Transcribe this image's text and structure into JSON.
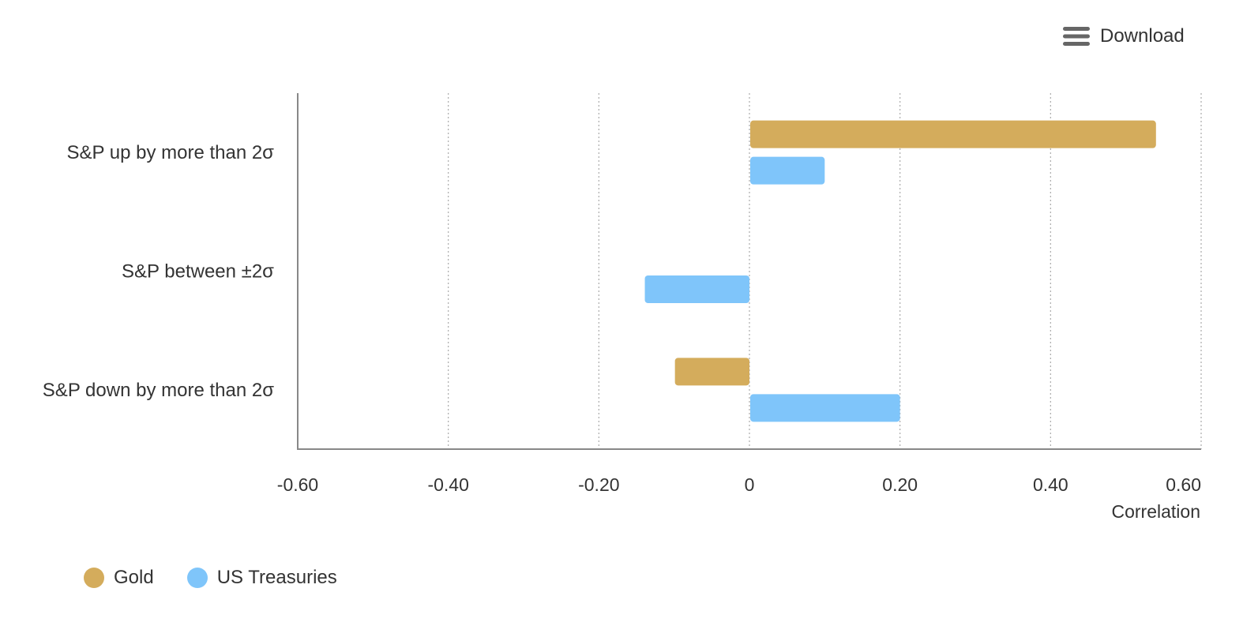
{
  "download": {
    "label": "Download",
    "icon": "menu-icon"
  },
  "chart_data": {
    "type": "bar",
    "orientation": "horizontal",
    "categories": [
      "S&P up by more than 2σ",
      "S&P between ±2σ",
      "S&P down by more than 2σ"
    ],
    "series": [
      {
        "name": "Gold",
        "color": "#d4ac5c",
        "values": [
          0.54,
          null,
          -0.1
        ]
      },
      {
        "name": "US Treasuries",
        "color": "#7fc5fa",
        "values": [
          0.1,
          -0.14,
          0.2
        ]
      }
    ],
    "xlabel": "Correlation",
    "ylabel": "",
    "xlim": [
      -0.6,
      0.6
    ],
    "xticks": [
      {
        "value": -0.6,
        "label": "-0.60"
      },
      {
        "value": -0.4,
        "label": "-0.40"
      },
      {
        "value": -0.2,
        "label": "-0.20"
      },
      {
        "value": 0,
        "label": "0"
      },
      {
        "value": 0.2,
        "label": "0.20"
      },
      {
        "value": 0.4,
        "label": "0.40"
      },
      {
        "value": 0.6,
        "label": "0.60"
      }
    ],
    "grid": "vertical-dotted",
    "legend_position": "bottom-left"
  }
}
